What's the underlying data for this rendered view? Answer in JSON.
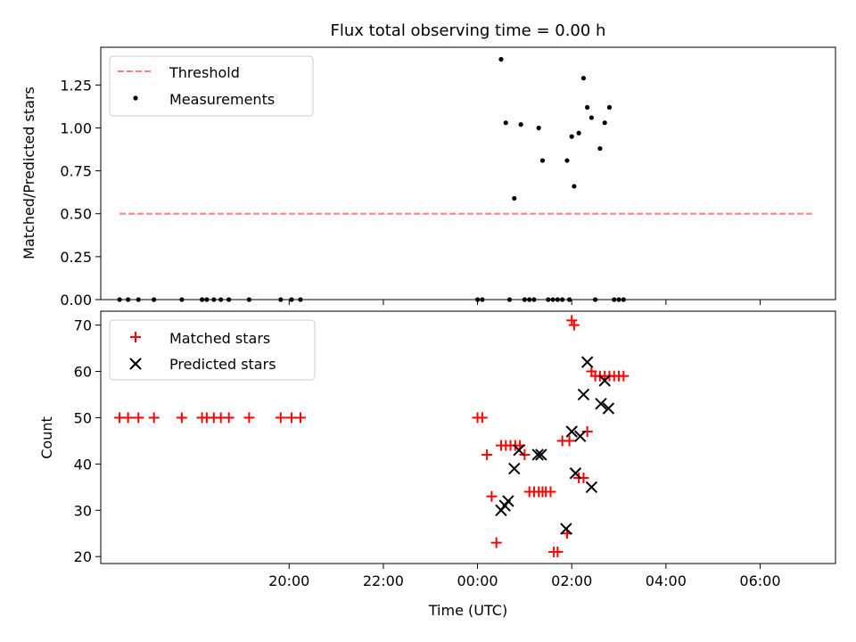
{
  "chart_data": [
    {
      "type": "scatter",
      "title": "Flux total observing time = 0.00 h",
      "xlabel": "",
      "ylabel": "Matched/Predicted stars",
      "xlim": [
        -4.0,
        11.6
      ],
      "ylim": [
        0.0,
        1.47
      ],
      "yticks": [
        0.0,
        0.25,
        0.5,
        0.75,
        1.0,
        1.25
      ],
      "ytick_labels": [
        "0.00",
        "0.25",
        "0.50",
        "0.75",
        "1.00",
        "1.25"
      ],
      "grid": false,
      "legend": "top-left",
      "threshold": {
        "name": "Threshold",
        "y": 0.5,
        "x_range": [
          -3.6,
          11.1
        ],
        "color": "#ff7f7f",
        "style": "dashed"
      },
      "series": [
        {
          "name": "Measurements",
          "color": "#000000",
          "marker": "dot",
          "x": [
            -3.6,
            -3.42,
            -3.2,
            -2.87,
            -2.28,
            -1.85,
            -1.75,
            -1.6,
            -1.45,
            -1.28,
            -0.85,
            -0.18,
            0.05,
            0.24,
            4.0,
            4.1,
            4.5,
            4.6,
            4.68,
            4.78,
            4.92,
            5.0,
            5.1,
            5.2,
            5.3,
            5.38,
            5.5,
            5.6,
            5.7,
            5.8,
            5.9,
            5.95,
            6.0,
            6.05,
            6.15,
            6.25,
            6.33,
            6.42,
            6.5,
            6.6,
            6.7,
            6.8,
            6.9,
            7.0,
            7.1
          ],
          "y": [
            0.0,
            0.0,
            0.0,
            0.0,
            0.0,
            0.0,
            0.0,
            0.0,
            0.0,
            0.0,
            0.0,
            0.0,
            0.0,
            0.0,
            0.0,
            0.0,
            1.4,
            1.03,
            0.0,
            0.59,
            1.02,
            0.0,
            0.0,
            0.0,
            1.0,
            0.81,
            0.0,
            0.0,
            0.0,
            0.0,
            0.81,
            0.0,
            0.95,
            0.66,
            0.97,
            1.29,
            1.12,
            1.06,
            0.0,
            0.88,
            1.03,
            1.12,
            0.0,
            0.0,
            0.0
          ]
        }
      ]
    },
    {
      "type": "scatter",
      "title": "",
      "xlabel": "Time (UTC)",
      "ylabel": "Count",
      "xlim": [
        -4.0,
        11.6
      ],
      "ylim": [
        18.5,
        73.0
      ],
      "yticks": [
        20,
        30,
        40,
        50,
        60,
        70
      ],
      "ytick_labels": [
        "20",
        "30",
        "40",
        "50",
        "60",
        "70"
      ],
      "xticks": [
        0,
        2,
        4,
        6,
        8,
        10
      ],
      "xtick_labels": [
        "20:00",
        "22:00",
        "00:00",
        "02:00",
        "04:00",
        "06:00"
      ],
      "grid": false,
      "legend": "top-left",
      "series": [
        {
          "name": "Matched stars",
          "color": "#ff0000",
          "marker": "plus",
          "x": [
            -3.6,
            -3.42,
            -3.2,
            -2.87,
            -2.28,
            -1.85,
            -1.75,
            -1.6,
            -1.45,
            -1.28,
            -0.85,
            -0.18,
            0.05,
            0.24,
            4.0,
            4.1,
            4.2,
            4.3,
            4.4,
            4.5,
            4.6,
            4.7,
            4.8,
            4.9,
            5.0,
            5.1,
            5.2,
            5.3,
            5.38,
            5.45,
            5.55,
            5.62,
            5.7,
            5.8,
            5.9,
            5.95,
            6.0,
            6.05,
            6.15,
            6.25,
            6.33,
            6.42,
            6.5,
            6.6,
            6.7,
            6.8,
            6.9,
            7.0,
            7.1
          ],
          "y": [
            50,
            50,
            50,
            50,
            50,
            50,
            50,
            50,
            50,
            50,
            50,
            50,
            50,
            50,
            50,
            50,
            42,
            33,
            23,
            44,
            44,
            44,
            44,
            44,
            42,
            34,
            34,
            34,
            34,
            34,
            34,
            21,
            21,
            45,
            25,
            45,
            71,
            70,
            37,
            37,
            47,
            60,
            59,
            59,
            59,
            59,
            59,
            59,
            59
          ]
        },
        {
          "name": "Predicted stars",
          "color": "#000000",
          "marker": "x",
          "x": [
            4.5,
            4.58,
            4.65,
            4.78,
            4.88,
            5.28,
            5.35,
            5.88,
            6.0,
            6.08,
            6.18,
            6.25,
            6.33,
            6.42,
            6.62,
            6.7,
            6.78
          ],
          "y": [
            30,
            31,
            32,
            39,
            43,
            42,
            42,
            26,
            47,
            38,
            46,
            55,
            62,
            35,
            53,
            58,
            52
          ]
        }
      ]
    }
  ]
}
